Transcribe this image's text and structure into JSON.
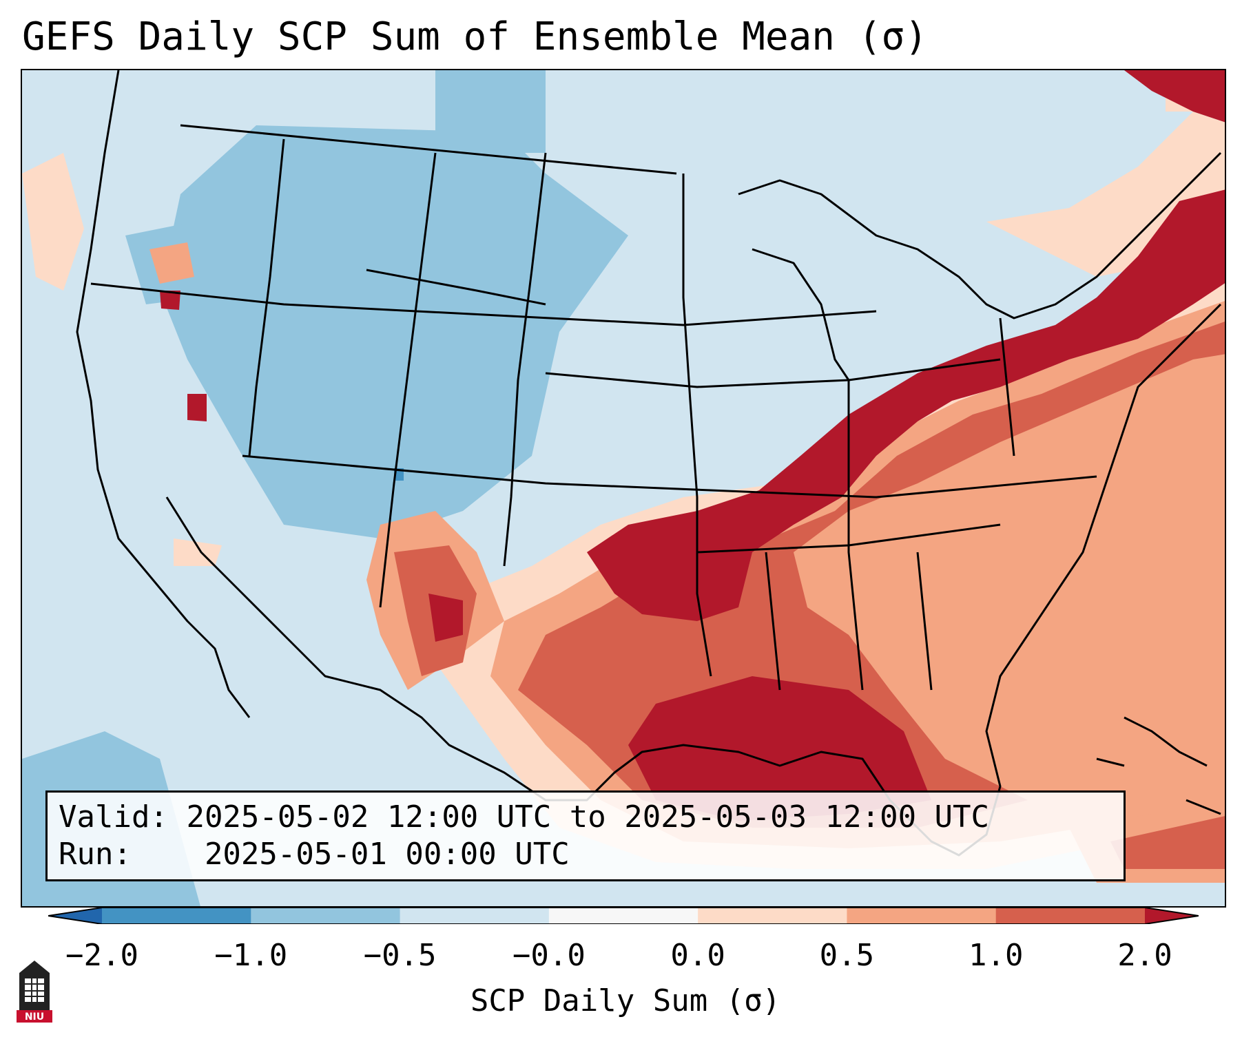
{
  "title": "GEFS Daily SCP Sum of Ensemble Mean (σ)",
  "info": {
    "valid_label": "Valid:",
    "valid_value": "2025-05-02 12:00 UTC to 2025-05-03 12:00 UTC",
    "run_label": "Run:",
    "run_value": "2025-05-01 00:00 UTC"
  },
  "colorbar": {
    "title": "SCP Daily Sum (σ)",
    "tick_labels": [
      "−2.0",
      "−1.0",
      "−0.5",
      "−0.0",
      "0.0",
      "0.5",
      "1.0",
      "2.0"
    ],
    "bins": [
      {
        "range": "< -2.0",
        "color": "#2166ac"
      },
      {
        "range": "-2.0 to -1.0",
        "color": "#4393c3"
      },
      {
        "range": "-1.0 to -0.5",
        "color": "#92c5de"
      },
      {
        "range": "-0.5 to -0.0",
        "color": "#d1e5f0"
      },
      {
        "range": "-0.0 to 0.0",
        "color": "#f7f7f7"
      },
      {
        "range": "0.0 to 0.5",
        "color": "#fddbc7"
      },
      {
        "range": "0.5 to 1.0",
        "color": "#f4a582"
      },
      {
        "range": "1.0 to 2.0",
        "color": "#d6604d"
      },
      {
        "range": "> 2.0",
        "color": "#b2182b"
      }
    ]
  },
  "logo": {
    "text": "NIU",
    "icon": "niu-tower-logo"
  }
}
